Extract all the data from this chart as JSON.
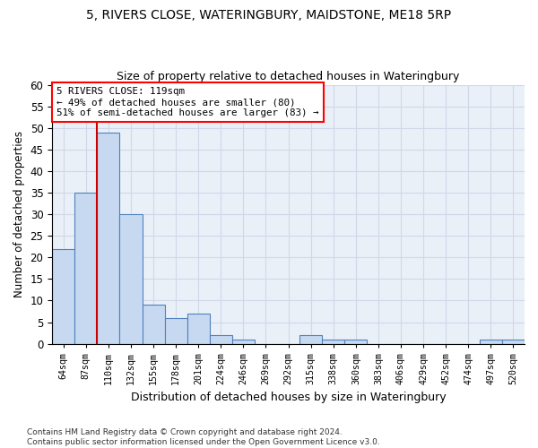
{
  "title1": "5, RIVERS CLOSE, WATERINGBURY, MAIDSTONE, ME18 5RP",
  "title2": "Size of property relative to detached houses in Wateringbury",
  "xlabel": "Distribution of detached houses by size in Wateringbury",
  "ylabel": "Number of detached properties",
  "categories": [
    "64sqm",
    "87sqm",
    "110sqm",
    "132sqm",
    "155sqm",
    "178sqm",
    "201sqm",
    "224sqm",
    "246sqm",
    "269sqm",
    "292sqm",
    "315sqm",
    "338sqm",
    "360sqm",
    "383sqm",
    "406sqm",
    "429sqm",
    "452sqm",
    "474sqm",
    "497sqm",
    "520sqm"
  ],
  "values": [
    22,
    35,
    49,
    30,
    9,
    6,
    7,
    2,
    1,
    0,
    0,
    2,
    1,
    1,
    0,
    0,
    0,
    0,
    0,
    1,
    1
  ],
  "bar_color": "#c6d9f0",
  "bar_edge_color": "#4f81bd",
  "annotation_line0": "5 RIVERS CLOSE: 119sqm",
  "annotation_line1": "← 49% of detached houses are smaller (80)",
  "annotation_line2": "51% of semi-detached houses are larger (83) →",
  "vline_color": "#cc0000",
  "vline_index": 2,
  "ylim": [
    0,
    60
  ],
  "yticks": [
    0,
    5,
    10,
    15,
    20,
    25,
    30,
    35,
    40,
    45,
    50,
    55,
    60
  ],
  "grid_color": "#d0d8e8",
  "background_color": "#eaf0f8",
  "footer1": "Contains HM Land Registry data © Crown copyright and database right 2024.",
  "footer2": "Contains public sector information licensed under the Open Government Licence v3.0."
}
